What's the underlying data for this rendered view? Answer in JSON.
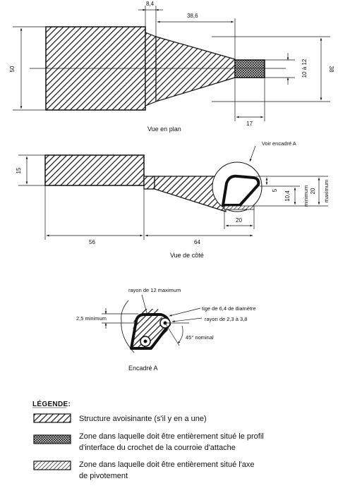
{
  "plan_view": {
    "caption": "Vue en plan",
    "dims": {
      "d8_4": "8,4",
      "d38_6": "38,6",
      "d50": "50",
      "d38": "38",
      "d10a12": "10 à 12",
      "d17": "17"
    }
  },
  "side_view": {
    "caption": "Vue de côté",
    "callout": "Voir encadré A",
    "dims": {
      "d15": "15",
      "d56": "56",
      "d64": "64",
      "d20h": "20",
      "d5": "5",
      "d10_4": "10,4",
      "d_minimum": "minimum",
      "d20v": "20",
      "d_maximum": "maximum"
    }
  },
  "detail_a": {
    "caption": "Encadré A",
    "labels": {
      "rayon12": "rayon de 12 maximum",
      "tige": "tige de 6,4 de diamètre",
      "rayon23": "rayon de 2,3 à 3,8",
      "min25": "2,5 minimum",
      "angle45": "45° nominal"
    }
  },
  "legend": {
    "title": "LÉGENDE:",
    "items": [
      {
        "lines": [
          "Structure avoisinante (s'il y en a une)"
        ]
      },
      {
        "lines": [
          "Zone dans laquelle doit être entièrement situé le profil",
          "d'interface du crochet de la courroie d'attache"
        ]
      },
      {
        "lines": [
          "Zone dans laquelle doit être entièrement situé l'axe",
          "de pivotement"
        ]
      }
    ]
  }
}
